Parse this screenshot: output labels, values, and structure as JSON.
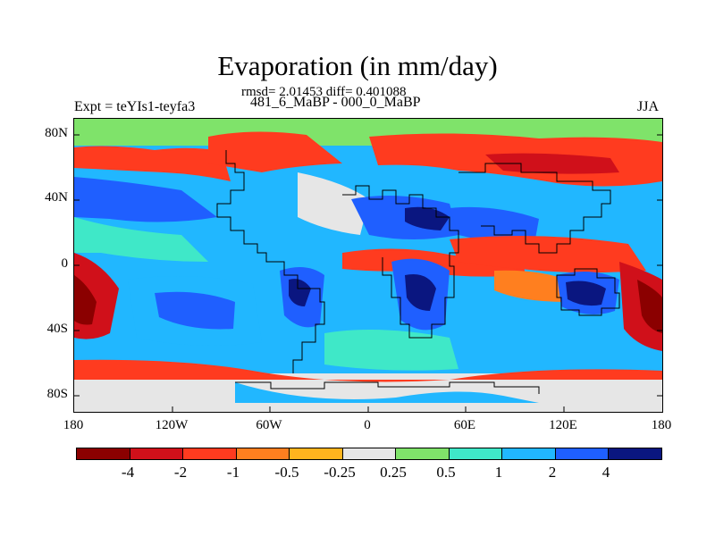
{
  "title": "Evaporation (in mm/day)",
  "stats": "rmsd= 2.01453 diff= 0.401088",
  "left_label": "Expt = teYIs1-teyfa3",
  "center_label": "481_6_MaBP - 000_0_MaBP",
  "right_label": "JJA",
  "y_axis": {
    "ticks": [
      "80N",
      "40N",
      "0",
      "40S",
      "80S"
    ]
  },
  "x_axis": {
    "ticks": [
      "180",
      "120W",
      "60W",
      "0",
      "60E",
      "120E",
      "180"
    ]
  },
  "colorbar": {
    "labels": [
      "-4",
      "-2",
      "-1",
      "-0.5",
      "-0.25",
      "0.25",
      "0.5",
      "1",
      "2",
      "4"
    ],
    "colors": [
      "#8b0000",
      "#d0101a",
      "#ff3b1f",
      "#ff7f1f",
      "#ffb41e",
      "#e6e6e6",
      "#7fe36a",
      "#3fe8c8",
      "#21b7ff",
      "#1f5fff",
      "#0a1680"
    ]
  },
  "map_colors": {
    "land_outline": "#000000",
    "ocean_polar": "#e6e6e6"
  }
}
